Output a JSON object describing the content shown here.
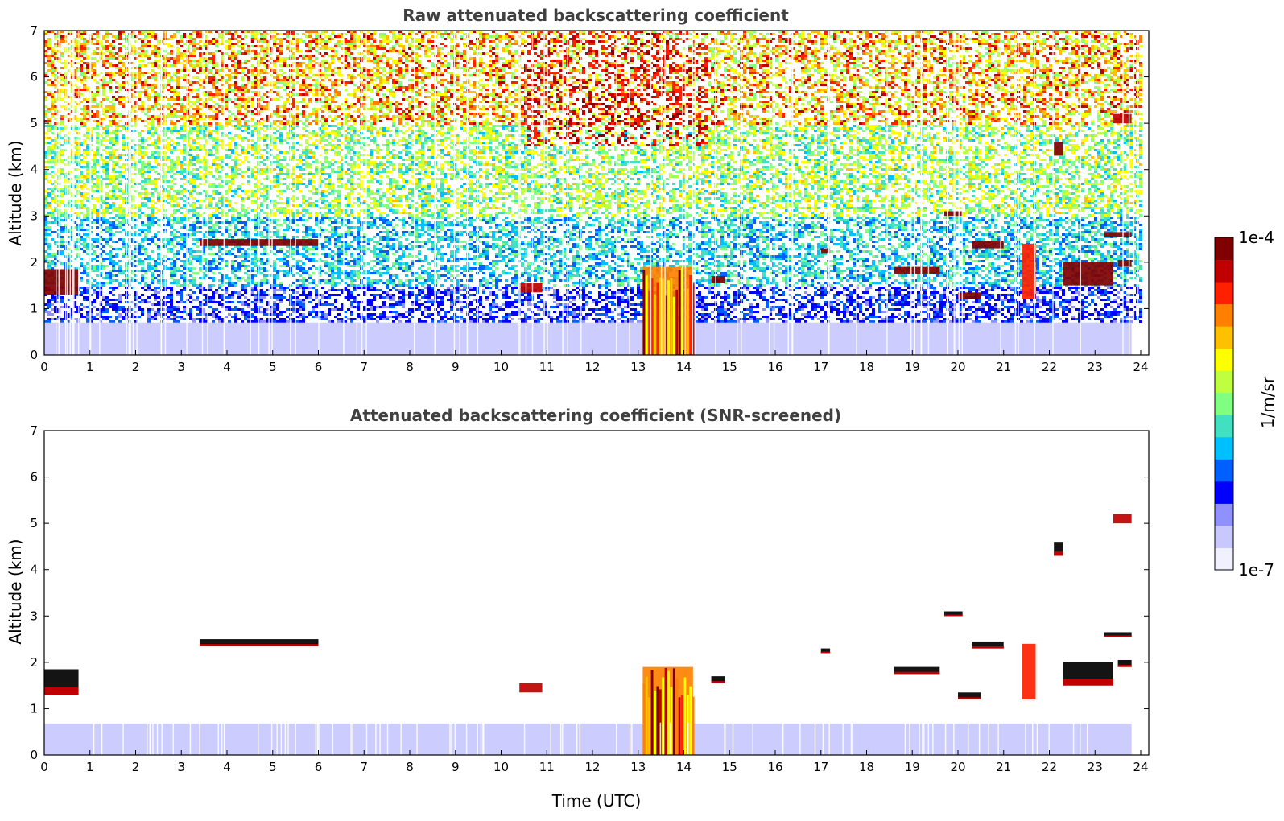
{
  "chart_data": [
    {
      "type": "heatmap",
      "title": "Raw attenuated backscattering coefficient",
      "ylabel": "Altitude (km)",
      "xlabel": "",
      "xlim": [
        0,
        24
      ],
      "ylim": [
        0,
        7
      ],
      "x_ticks": [
        "0",
        "1",
        "2",
        "3",
        "4",
        "5",
        "6",
        "7",
        "8",
        "9",
        "10",
        "11",
        "12",
        "13",
        "14",
        "15",
        "16",
        "17",
        "18",
        "19",
        "20",
        "21",
        "22",
        "23",
        "24"
      ],
      "y_ticks": [
        "0",
        "1",
        "2",
        "3",
        "4",
        "5",
        "6",
        "7"
      ],
      "features": [
        {
          "name": "boundary layer",
          "t0": 0.0,
          "t1": 23.8,
          "z0": 0.0,
          "z1": 0.7,
          "level": 0.12
        },
        {
          "name": "low cloud",
          "t0": 0.0,
          "t1": 0.75,
          "z0": 1.3,
          "z1": 1.85,
          "level": 0.97
        },
        {
          "name": "cloud layer",
          "t0": 3.4,
          "t1": 6.0,
          "z0": 2.35,
          "z1": 2.5,
          "level": 0.98
        },
        {
          "name": "cloud",
          "t0": 10.4,
          "t1": 10.9,
          "z0": 1.35,
          "z1": 1.55,
          "level": 0.9
        },
        {
          "name": "convective cloud",
          "t0": 13.1,
          "t1": 14.2,
          "z0": 0.0,
          "z1": 1.9,
          "level": 0.75
        },
        {
          "name": "cloud",
          "t0": 14.6,
          "t1": 14.9,
          "z0": 1.55,
          "z1": 1.7,
          "level": 0.95
        },
        {
          "name": "cloud",
          "t0": 17.0,
          "t1": 17.2,
          "z0": 2.2,
          "z1": 2.3,
          "level": 0.95
        },
        {
          "name": "cloud",
          "t0": 18.6,
          "t1": 19.6,
          "z0": 1.75,
          "z1": 1.9,
          "level": 0.97
        },
        {
          "name": "cloud",
          "t0": 19.7,
          "t1": 20.1,
          "z0": 3.0,
          "z1": 3.1,
          "level": 0.97
        },
        {
          "name": "cloud",
          "t0": 20.0,
          "t1": 20.5,
          "z0": 1.2,
          "z1": 1.35,
          "level": 0.97
        },
        {
          "name": "cloud",
          "t0": 20.3,
          "t1": 21.0,
          "z0": 2.3,
          "z1": 2.45,
          "level": 0.97
        },
        {
          "name": "cloud",
          "t0": 21.4,
          "t1": 21.7,
          "z0": 1.2,
          "z1": 2.4,
          "level": 0.85
        },
        {
          "name": "cloud",
          "t0": 22.1,
          "t1": 22.3,
          "z0": 4.3,
          "z1": 4.6,
          "level": 0.95
        },
        {
          "name": "cloud",
          "t0": 22.3,
          "t1": 23.4,
          "z0": 1.5,
          "z1": 2.0,
          "level": 0.95
        },
        {
          "name": "cloud",
          "t0": 23.2,
          "t1": 23.8,
          "z0": 2.55,
          "z1": 2.65,
          "level": 0.95
        },
        {
          "name": "cloud",
          "t0": 23.4,
          "t1": 23.8,
          "z0": 5.0,
          "z1": 5.2,
          "level": 0.9
        },
        {
          "name": "cloud",
          "t0": 23.5,
          "t1": 23.8,
          "z0": 1.9,
          "z1": 2.05,
          "level": 0.95
        }
      ]
    },
    {
      "type": "heatmap",
      "title": "Attenuated backscattering coefficient (SNR-screened)",
      "ylabel": "Altitude (km)",
      "xlabel": "Time (UTC)",
      "xlim": [
        0,
        24
      ],
      "ylim": [
        0,
        7
      ],
      "x_ticks": [
        "0",
        "1",
        "2",
        "3",
        "4",
        "5",
        "6",
        "7",
        "8",
        "9",
        "10",
        "11",
        "12",
        "13",
        "14",
        "15",
        "16",
        "17",
        "18",
        "19",
        "20",
        "21",
        "22",
        "23",
        "24"
      ],
      "y_ticks": [
        "0",
        "1",
        "2",
        "3",
        "4",
        "5",
        "6",
        "7"
      ]
    }
  ],
  "colorbar": {
    "max_label": "1e-4",
    "min_label": "1e-7",
    "unit_label": "1/m/sr",
    "colors": [
      "#f0f0ff",
      "#c8c8ff",
      "#9090ff",
      "#0000ff",
      "#0060ff",
      "#00c0ff",
      "#40e0c0",
      "#80ff80",
      "#c0ff40",
      "#ffff00",
      "#ffc000",
      "#ff8000",
      "#ff2000",
      "#c00000",
      "#800000"
    ]
  }
}
